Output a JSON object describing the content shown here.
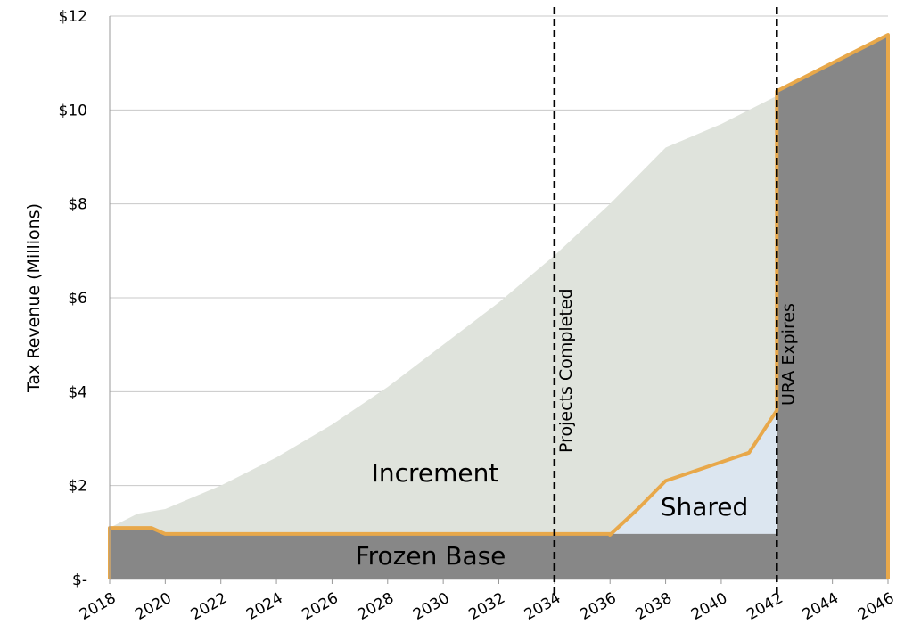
{
  "chart_data": {
    "type": "area",
    "ylabel": "Tax Revenue (Millions)",
    "xlim": [
      2018,
      2046
    ],
    "ylim": [
      0,
      12
    ],
    "xticks": [
      2018,
      2020,
      2022,
      2024,
      2026,
      2028,
      2030,
      2032,
      2034,
      2036,
      2038,
      2040,
      2042,
      2044,
      2046
    ],
    "yticks": [
      {
        "value": 0,
        "label": "$-"
      },
      {
        "value": 2,
        "label": "$2"
      },
      {
        "value": 4,
        "label": "$4"
      },
      {
        "value": 6,
        "label": "$6"
      },
      {
        "value": 8,
        "label": "$8"
      },
      {
        "value": 10,
        "label": "$10"
      },
      {
        "value": 12,
        "label": "$12"
      }
    ],
    "grid": true,
    "outline_color": "#e8a84a",
    "series": [
      {
        "name": "Increment",
        "color": "#dfe3dc",
        "x": [
          2018,
          2019,
          2020,
          2022,
          2024,
          2026,
          2028,
          2030,
          2032,
          2034,
          2036,
          2038,
          2040,
          2042
        ],
        "values": [
          1.1,
          1.4,
          1.5,
          2.0,
          2.6,
          3.3,
          4.1,
          5.0,
          5.9,
          6.9,
          8.0,
          9.2,
          9.7,
          10.3
        ]
      },
      {
        "name": "Shared",
        "color": "#dce6f0",
        "x": [
          2036,
          2037,
          2038,
          2039,
          2040,
          2041,
          2042
        ],
        "values": [
          0.95,
          1.5,
          2.1,
          2.3,
          2.5,
          2.7,
          3.6
        ]
      },
      {
        "name": "Frozen Base",
        "color": "#878787",
        "x": [
          2018,
          2019.5,
          2020,
          2036,
          2042,
          2042,
          2046
        ],
        "values": [
          1.1,
          1.1,
          0.97,
          0.97,
          0.97,
          10.4,
          11.6
        ]
      }
    ],
    "annotations": [
      {
        "text": "Projects Completed",
        "x": 2034
      },
      {
        "text": "URA Expires",
        "x": 2042
      }
    ]
  }
}
